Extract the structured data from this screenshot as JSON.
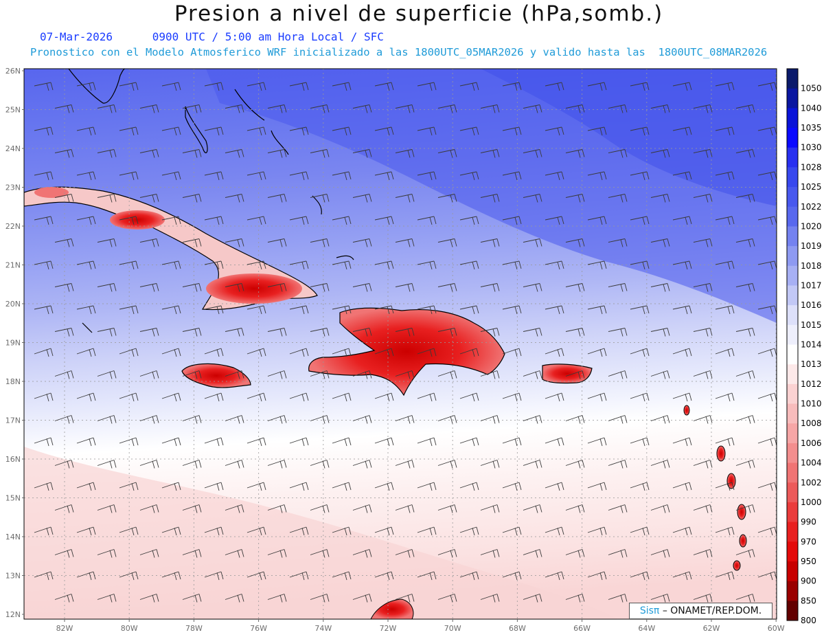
{
  "title": "Presion a nivel de superficie (hPa,somb.)",
  "date": "07-Mar-2026",
  "valid_time": "0900 UTC / 5:00 am Hora Local / SFC",
  "subtitle": "Pronostico con el Modelo Atmosferico WRF inicializado a las 1800UTC_05MAR2026 y valido hasta las  1800UTC_08MAR2026",
  "credit_brand": "Sisπ",
  "credit_org": "– ONAMET/REP.DOM.",
  "lat_labels": [
    "26N",
    "25N",
    "24N",
    "23N",
    "22N",
    "21N",
    "20N",
    "19N",
    "18N",
    "17N",
    "16N",
    "15N",
    "14N",
    "13N",
    "12N"
  ],
  "lon_labels": [
    "82W",
    "80W",
    "78W",
    "76W",
    "74W",
    "72W",
    "70W",
    "68W",
    "66W",
    "64W",
    "62W",
    "60W"
  ],
  "colorbar": {
    "labels": [
      "1050",
      "1040",
      "1035",
      "1030",
      "1028",
      "1025",
      "1022",
      "1020",
      "1019",
      "1018",
      "1017",
      "1016",
      "1015",
      "1014",
      "1013",
      "1012",
      "1010",
      "1008",
      "1006",
      "1004",
      "1002",
      "1000",
      "990",
      "970",
      "950",
      "900",
      "850",
      "800"
    ],
    "colors": [
      "#0b1a6b",
      "#0a16a0",
      "#0a14d8",
      "#0a0aff",
      "#2830f0",
      "#3848ee",
      "#4858ee",
      "#5868ee",
      "#7482f0",
      "#8e9af2",
      "#a7b0f4",
      "#c2c8f6",
      "#dde0fa",
      "#eeeffc",
      "#ffffff",
      "#fde9e9",
      "#fbd2d2",
      "#f8bcbc",
      "#f6a6a6",
      "#f38e8e",
      "#f07474",
      "#ec5a5a",
      "#ea3c3c",
      "#e82020",
      "#e40a0a",
      "#c80000",
      "#9a0000",
      "#620000"
    ]
  }
}
